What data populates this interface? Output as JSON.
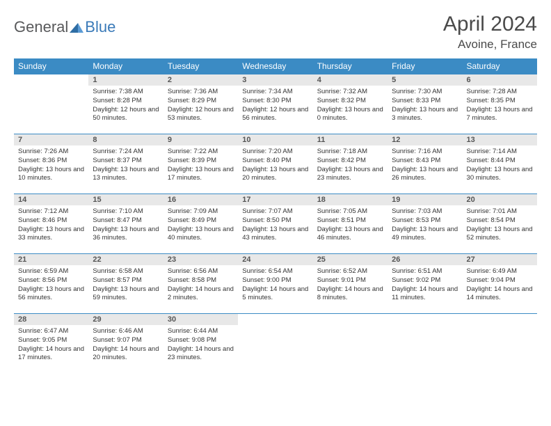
{
  "logo": {
    "text_general": "General",
    "text_blue": "Blue"
  },
  "title": "April 2024",
  "location": "Avoine, France",
  "colors": {
    "header_bg": "#3b8bc4",
    "header_text": "#ffffff",
    "daynum_bg": "#e8e8e8",
    "border": "#3b8bc4",
    "logo_gray": "#58595b",
    "logo_blue": "#3a7ab8"
  },
  "day_headers": [
    "Sunday",
    "Monday",
    "Tuesday",
    "Wednesday",
    "Thursday",
    "Friday",
    "Saturday"
  ],
  "weeks": [
    [
      {
        "n": "",
        "sr": "",
        "ss": "",
        "dl": "",
        "empty": true
      },
      {
        "n": "1",
        "sr": "Sunrise: 7:38 AM",
        "ss": "Sunset: 8:28 PM",
        "dl": "Daylight: 12 hours and 50 minutes."
      },
      {
        "n": "2",
        "sr": "Sunrise: 7:36 AM",
        "ss": "Sunset: 8:29 PM",
        "dl": "Daylight: 12 hours and 53 minutes."
      },
      {
        "n": "3",
        "sr": "Sunrise: 7:34 AM",
        "ss": "Sunset: 8:30 PM",
        "dl": "Daylight: 12 hours and 56 minutes."
      },
      {
        "n": "4",
        "sr": "Sunrise: 7:32 AM",
        "ss": "Sunset: 8:32 PM",
        "dl": "Daylight: 13 hours and 0 minutes."
      },
      {
        "n": "5",
        "sr": "Sunrise: 7:30 AM",
        "ss": "Sunset: 8:33 PM",
        "dl": "Daylight: 13 hours and 3 minutes."
      },
      {
        "n": "6",
        "sr": "Sunrise: 7:28 AM",
        "ss": "Sunset: 8:35 PM",
        "dl": "Daylight: 13 hours and 7 minutes."
      }
    ],
    [
      {
        "n": "7",
        "sr": "Sunrise: 7:26 AM",
        "ss": "Sunset: 8:36 PM",
        "dl": "Daylight: 13 hours and 10 minutes."
      },
      {
        "n": "8",
        "sr": "Sunrise: 7:24 AM",
        "ss": "Sunset: 8:37 PM",
        "dl": "Daylight: 13 hours and 13 minutes."
      },
      {
        "n": "9",
        "sr": "Sunrise: 7:22 AM",
        "ss": "Sunset: 8:39 PM",
        "dl": "Daylight: 13 hours and 17 minutes."
      },
      {
        "n": "10",
        "sr": "Sunrise: 7:20 AM",
        "ss": "Sunset: 8:40 PM",
        "dl": "Daylight: 13 hours and 20 minutes."
      },
      {
        "n": "11",
        "sr": "Sunrise: 7:18 AM",
        "ss": "Sunset: 8:42 PM",
        "dl": "Daylight: 13 hours and 23 minutes."
      },
      {
        "n": "12",
        "sr": "Sunrise: 7:16 AM",
        "ss": "Sunset: 8:43 PM",
        "dl": "Daylight: 13 hours and 26 minutes."
      },
      {
        "n": "13",
        "sr": "Sunrise: 7:14 AM",
        "ss": "Sunset: 8:44 PM",
        "dl": "Daylight: 13 hours and 30 minutes."
      }
    ],
    [
      {
        "n": "14",
        "sr": "Sunrise: 7:12 AM",
        "ss": "Sunset: 8:46 PM",
        "dl": "Daylight: 13 hours and 33 minutes."
      },
      {
        "n": "15",
        "sr": "Sunrise: 7:10 AM",
        "ss": "Sunset: 8:47 PM",
        "dl": "Daylight: 13 hours and 36 minutes."
      },
      {
        "n": "16",
        "sr": "Sunrise: 7:09 AM",
        "ss": "Sunset: 8:49 PM",
        "dl": "Daylight: 13 hours and 40 minutes."
      },
      {
        "n": "17",
        "sr": "Sunrise: 7:07 AM",
        "ss": "Sunset: 8:50 PM",
        "dl": "Daylight: 13 hours and 43 minutes."
      },
      {
        "n": "18",
        "sr": "Sunrise: 7:05 AM",
        "ss": "Sunset: 8:51 PM",
        "dl": "Daylight: 13 hours and 46 minutes."
      },
      {
        "n": "19",
        "sr": "Sunrise: 7:03 AM",
        "ss": "Sunset: 8:53 PM",
        "dl": "Daylight: 13 hours and 49 minutes."
      },
      {
        "n": "20",
        "sr": "Sunrise: 7:01 AM",
        "ss": "Sunset: 8:54 PM",
        "dl": "Daylight: 13 hours and 52 minutes."
      }
    ],
    [
      {
        "n": "21",
        "sr": "Sunrise: 6:59 AM",
        "ss": "Sunset: 8:56 PM",
        "dl": "Daylight: 13 hours and 56 minutes."
      },
      {
        "n": "22",
        "sr": "Sunrise: 6:58 AM",
        "ss": "Sunset: 8:57 PM",
        "dl": "Daylight: 13 hours and 59 minutes."
      },
      {
        "n": "23",
        "sr": "Sunrise: 6:56 AM",
        "ss": "Sunset: 8:58 PM",
        "dl": "Daylight: 14 hours and 2 minutes."
      },
      {
        "n": "24",
        "sr": "Sunrise: 6:54 AM",
        "ss": "Sunset: 9:00 PM",
        "dl": "Daylight: 14 hours and 5 minutes."
      },
      {
        "n": "25",
        "sr": "Sunrise: 6:52 AM",
        "ss": "Sunset: 9:01 PM",
        "dl": "Daylight: 14 hours and 8 minutes."
      },
      {
        "n": "26",
        "sr": "Sunrise: 6:51 AM",
        "ss": "Sunset: 9:02 PM",
        "dl": "Daylight: 14 hours and 11 minutes."
      },
      {
        "n": "27",
        "sr": "Sunrise: 6:49 AM",
        "ss": "Sunset: 9:04 PM",
        "dl": "Daylight: 14 hours and 14 minutes."
      }
    ],
    [
      {
        "n": "28",
        "sr": "Sunrise: 6:47 AM",
        "ss": "Sunset: 9:05 PM",
        "dl": "Daylight: 14 hours and 17 minutes."
      },
      {
        "n": "29",
        "sr": "Sunrise: 6:46 AM",
        "ss": "Sunset: 9:07 PM",
        "dl": "Daylight: 14 hours and 20 minutes."
      },
      {
        "n": "30",
        "sr": "Sunrise: 6:44 AM",
        "ss": "Sunset: 9:08 PM",
        "dl": "Daylight: 14 hours and 23 minutes."
      },
      {
        "n": "",
        "sr": "",
        "ss": "",
        "dl": "",
        "empty": true
      },
      {
        "n": "",
        "sr": "",
        "ss": "",
        "dl": "",
        "empty": true
      },
      {
        "n": "",
        "sr": "",
        "ss": "",
        "dl": "",
        "empty": true
      },
      {
        "n": "",
        "sr": "",
        "ss": "",
        "dl": "",
        "empty": true
      }
    ]
  ]
}
